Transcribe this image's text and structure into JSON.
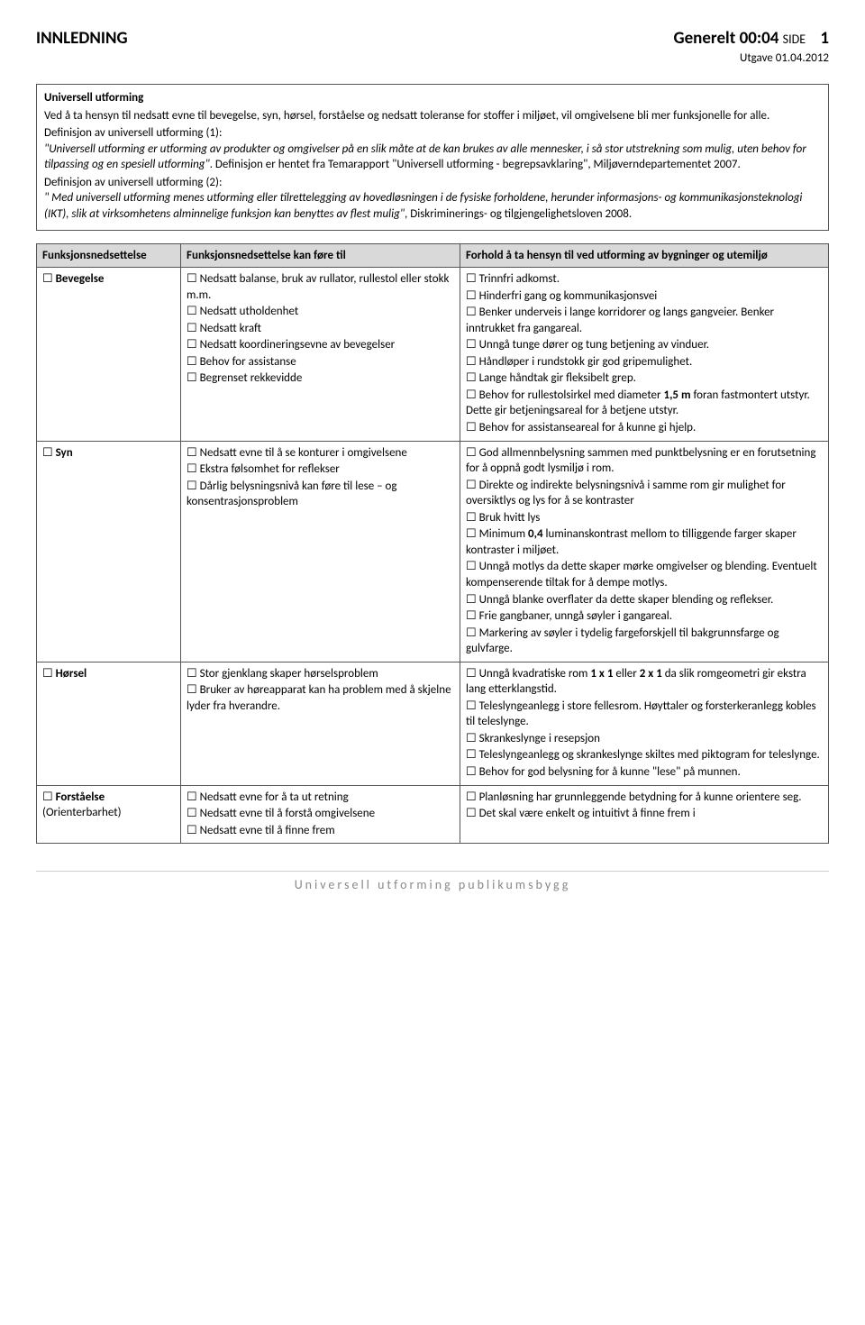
{
  "header": {
    "left": "INNLEDNING",
    "rightTitle": "Generelt 00:04",
    "rightSmall": "SIDE",
    "pageNum": "1",
    "edition": "Utgave 01.04.2012"
  },
  "intro": {
    "title": "Universell utforming",
    "p1": "Ved å ta hensyn til nedsatt evne til bevegelse, syn, hørsel, forståelse og nedsatt toleranse for stoffer i miljøet, vil omgivelsene bli mer funksjonelle for alle.",
    "p2a": "Definisjon av universell utforming (1):",
    "p2b": "\"Universell utforming er utforming av produkter og omgivelser på en slik måte at de kan brukes av alle mennesker, i så stor utstrekning som mulig, uten behov for tilpassing og en spesiell utforming\"",
    "p2c": ". Definisjon er hentet fra Temarapport \"Universell utforming - begrepsavklaring\", Miljøverndepartementet 2007.",
    "p3a": "Definisjon av universell utforming (2):",
    "p3b": "\" Med universell utforming menes utforming eller tilrettelegging av hovedløsningen i de fysiske forholdene, herunder informasjons- og kommunikasjonsteknologi (IKT), slik at virksomhetens alminnelige funksjon kan benyttes av flest mulig\"",
    "p3c": ", Diskriminerings- og tilgjengelighetsloven 2008."
  },
  "table": {
    "headers": {
      "c1": "Funksjonsnedsettelse",
      "c2": "Funksjonsnedsettelse kan føre til",
      "c3": "Forhold å ta hensyn til ved utforming av bygninger og utemiljø"
    },
    "rows": [
      {
        "c1": "Bevegelse",
        "c2": [
          "Nedsatt balanse, bruk av rullator, rullestol eller stokk m.m.",
          "Nedsatt utholdenhet",
          "Nedsatt kraft",
          "Nedsatt koordineringsevne av bevegelser",
          "Behov for assistanse",
          "Begrenset rekkevidde"
        ],
        "c3": [
          "Trinnfri adkomst.",
          "Hinderfri gang og kommunikasjonsvei",
          "Benker underveis i lange korridorer og langs gangveier. Benker inntrukket fra gangareal.",
          "Unngå tunge dører og tung betjening av vinduer.",
          "Håndløper i rundstokk gir god gripemulighet.",
          "Lange håndtak gir fleksibelt grep.",
          "Behov for rullestolsirkel med diameter <b>1,5 m</b> foran fastmontert utstyr. Dette gir betjeningsareal for å betjene utstyr.",
          "Behov for assistanseareal for å kunne gi hjelp."
        ]
      },
      {
        "c1": "Syn",
        "c2": [
          "Nedsatt evne til å se konturer i omgivelsene",
          "Ekstra følsomhet for reflekser",
          "Dårlig belysningsnivå kan føre til lese – og konsentrasjonsproblem"
        ],
        "c3": [
          "God allmennbelysning sammen med punktbelysning er en forutsetning for å oppnå godt lysmiljø i rom.",
          "Direkte og indirekte belysningsnivå i samme rom gir mulighet for oversiktlys og lys for å se kontraster",
          "Bruk hvitt lys",
          "Minimum <b>0,4</b> luminanskontrast mellom to tilliggende farger skaper kontraster i miljøet.",
          "Unngå motlys da dette skaper mørke omgivelser og blending. Eventuelt kompenserende tiltak for å dempe motlys.",
          "Unngå blanke overflater da dette skaper blending og reflekser.",
          "Frie gangbaner, unngå søyler i gangareal.",
          "Markering av søyler i tydelig fargeforskjell til bakgrunnsfarge og gulvfarge."
        ]
      },
      {
        "c1": "Hørsel",
        "c2": [
          "Stor gjenklang skaper hørselsproblem",
          "Bruker av høreapparat kan ha problem med å skjelne lyder fra hverandre."
        ],
        "c3": [
          "Unngå kvadratiske rom <b>1 x 1</b> eller <b>2 x 1</b> da slik romgeometri gir ekstra lang etterklangstid.",
          "Teleslyngeanlegg i store fellesrom. Høyttaler og forsterkeranlegg kobles til teleslynge.",
          "Skrankeslynge i resepsjon",
          "Teleslyngeanlegg og skrankeslynge skiltes med piktogram for teleslynge.",
          "Behov for god belysning for å kunne \"lese\" på munnen."
        ]
      },
      {
        "c1plain": "Forståelse",
        "c1sub": "(Orienterbarhet)",
        "c2": [
          "Nedsatt evne for å ta ut retning",
          "Nedsatt evne til å forstå omgivelsene",
          "Nedsatt evne til å finne frem"
        ],
        "c3": [
          "Planløsning har grunnleggende betydning for å kunne orientere seg.",
          "Det skal være enkelt og intuitivt å finne frem i"
        ]
      }
    ]
  },
  "footer": "Universell utforming publikumsbygg"
}
